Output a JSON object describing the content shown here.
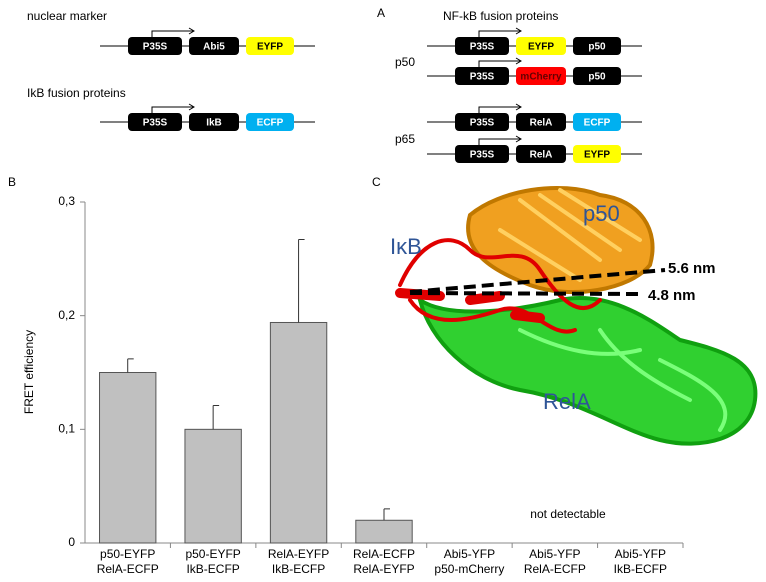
{
  "panels": {
    "a": "A",
    "b": "B",
    "c": "C"
  },
  "panel_a": {
    "group_labels": [
      "nuclear marker",
      "IkB fusion proteins",
      "NF-kB fusion proteins"
    ],
    "row_labels": [
      "p50",
      "p65"
    ],
    "constructs": [
      {
        "boxes": [
          {
            "text": "P35S",
            "color": "#000000"
          },
          {
            "text": "Abi5",
            "color": "#000000"
          },
          {
            "text": "EYFP",
            "color": "#ffff00"
          }
        ]
      },
      {
        "boxes": [
          {
            "text": "P35S",
            "color": "#000000"
          },
          {
            "text": "IkB",
            "color": "#000000"
          },
          {
            "text": "ECFP",
            "color": "#00b0f0"
          }
        ]
      },
      {
        "boxes": [
          {
            "text": "P35S",
            "color": "#000000"
          },
          {
            "text": "EYFP",
            "color": "#ffff00"
          },
          {
            "text": "p50",
            "color": "#000000"
          }
        ]
      },
      {
        "boxes": [
          {
            "text": "P35S",
            "color": "#000000"
          },
          {
            "text": "mCherry",
            "color": "#ff0000"
          },
          {
            "text": "p50",
            "color": "#000000"
          }
        ]
      },
      {
        "boxes": [
          {
            "text": "P35S",
            "color": "#000000"
          },
          {
            "text": "RelA",
            "color": "#000000"
          },
          {
            "text": "ECFP",
            "color": "#00b0f0"
          }
        ]
      },
      {
        "boxes": [
          {
            "text": "P35S",
            "color": "#000000"
          },
          {
            "text": "RelA",
            "color": "#000000"
          },
          {
            "text": "EYFP",
            "color": "#ffff00"
          }
        ]
      }
    ]
  },
  "panel_c": {
    "labels": [
      "p50",
      "IκB",
      "5.6 nm",
      "4.8 nm",
      "RelA"
    ]
  },
  "chart_data": {
    "type": "bar",
    "ylabel": "FRET efficiency",
    "categories": [
      [
        "p50-EYFP",
        "RelA-ECFP"
      ],
      [
        "p50-EYFP",
        "IkB-ECFP"
      ],
      [
        "RelA-EYFP",
        "IkB-ECFP"
      ],
      [
        "RelA-ECFP",
        "RelA-EYFP"
      ],
      [
        "Abi5-YFP",
        "p50-mCherry"
      ],
      [
        "Abi5-YFP",
        "RelA-ECFP"
      ],
      [
        "Abi5-YFP",
        "IkB-ECFP"
      ]
    ],
    "values": [
      0.15,
      0.1,
      0.194,
      0.02,
      null,
      null,
      null
    ],
    "errors": [
      0.012,
      0.021,
      0.073,
      0.01,
      null,
      null,
      null
    ],
    "color": "#c0c0c0",
    "annotation": "not detectable",
    "ylim": [
      0,
      0.3
    ],
    "yticks": [
      0,
      {
        "value": 0.1,
        "label": "0,1"
      },
      {
        "value": 0.2,
        "label": "0,2"
      },
      {
        "value": 0.3,
        "label": "0,3"
      }
    ]
  }
}
